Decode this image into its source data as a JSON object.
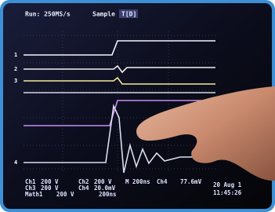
{
  "header": {
    "acquisition": "Run: 250MS/s",
    "mode": "Sample",
    "trigger": "T[D]"
  },
  "channel_markers": [
    "1",
    "2",
    "3",
    "4"
  ],
  "readout": {
    "row1": [
      "Ch1",
      "200 V",
      "Ch2",
      "200 V",
      "M 200ns",
      "Ch4",
      "77.6mV"
    ],
    "row2": [
      "Ch3",
      "200 V",
      "Ch4",
      "20.0mV"
    ],
    "row3": [
      "Math1",
      "200 V",
      "200ns"
    ],
    "date": "20 Aug 1",
    "time": "11:45:26"
  }
}
